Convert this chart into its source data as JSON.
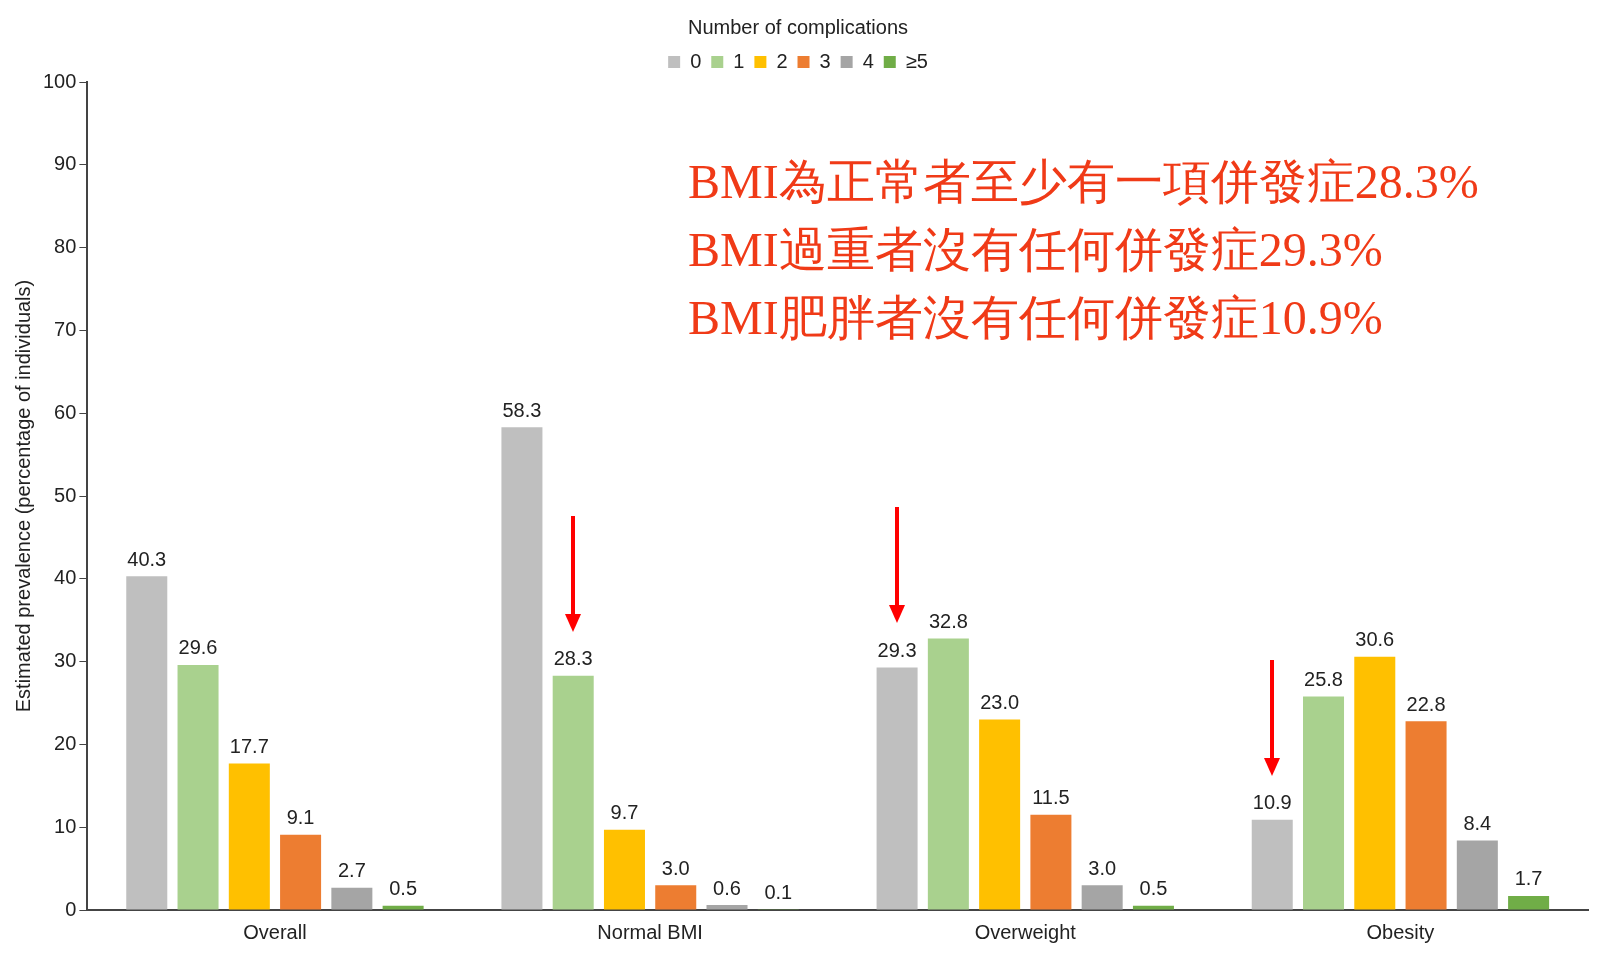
{
  "chart_data": {
    "type": "bar",
    "ylabel": "Estimated prevalence (percentage of individuals)",
    "legend_title": "Number of complications",
    "categories": [
      "Overall",
      "Normal BMI",
      "Overweight",
      "Obesity"
    ],
    "series": [
      {
        "name": "0",
        "color": "#bfbfbf",
        "values": [
          40.3,
          58.3,
          29.3,
          10.9
        ],
        "value_labels": [
          "40.3",
          "58.3",
          "29.3",
          "10.9"
        ]
      },
      {
        "name": "1",
        "color": "#a9d18e",
        "values": [
          29.6,
          28.3,
          32.8,
          25.8
        ],
        "value_labels": [
          "29.6",
          "28.3",
          "32.8",
          "25.8"
        ]
      },
      {
        "name": "2",
        "color": "#ffc000",
        "values": [
          17.7,
          9.7,
          23,
          30.6
        ],
        "value_labels": [
          "17.7",
          "9.7",
          "23.0",
          "30.6"
        ]
      },
      {
        "name": "3",
        "color": "#ed7d31",
        "values": [
          9.1,
          3,
          11.5,
          22.8
        ],
        "value_labels": [
          "9.1",
          "3.0",
          "11.5",
          "22.8"
        ]
      },
      {
        "name": "4",
        "color": "#a5a5a5",
        "values": [
          2.7,
          0.6,
          3,
          8.4
        ],
        "value_labels": [
          "2.7",
          "0.6",
          "3.0",
          "8.4"
        ]
      },
      {
        "name": "≥5",
        "color": "#70ad47",
        "values": [
          0.5,
          0.1,
          0.5,
          1.7
        ],
        "value_labels": [
          "0.5",
          "0.1",
          "0.5",
          "1.7"
        ]
      }
    ],
    "ylim": [
      0,
      100
    ],
    "yticks": [
      0,
      10,
      20,
      30,
      40,
      50,
      60,
      70,
      80,
      90,
      100
    ],
    "grid": false,
    "legend": "top",
    "annotations": [
      "BMI為正常者至少有一項併發症28.3%",
      "BMI過重者沒有任何併發症29.3%",
      "BMI肥胖者沒有任何併發症10.9%"
    ]
  }
}
